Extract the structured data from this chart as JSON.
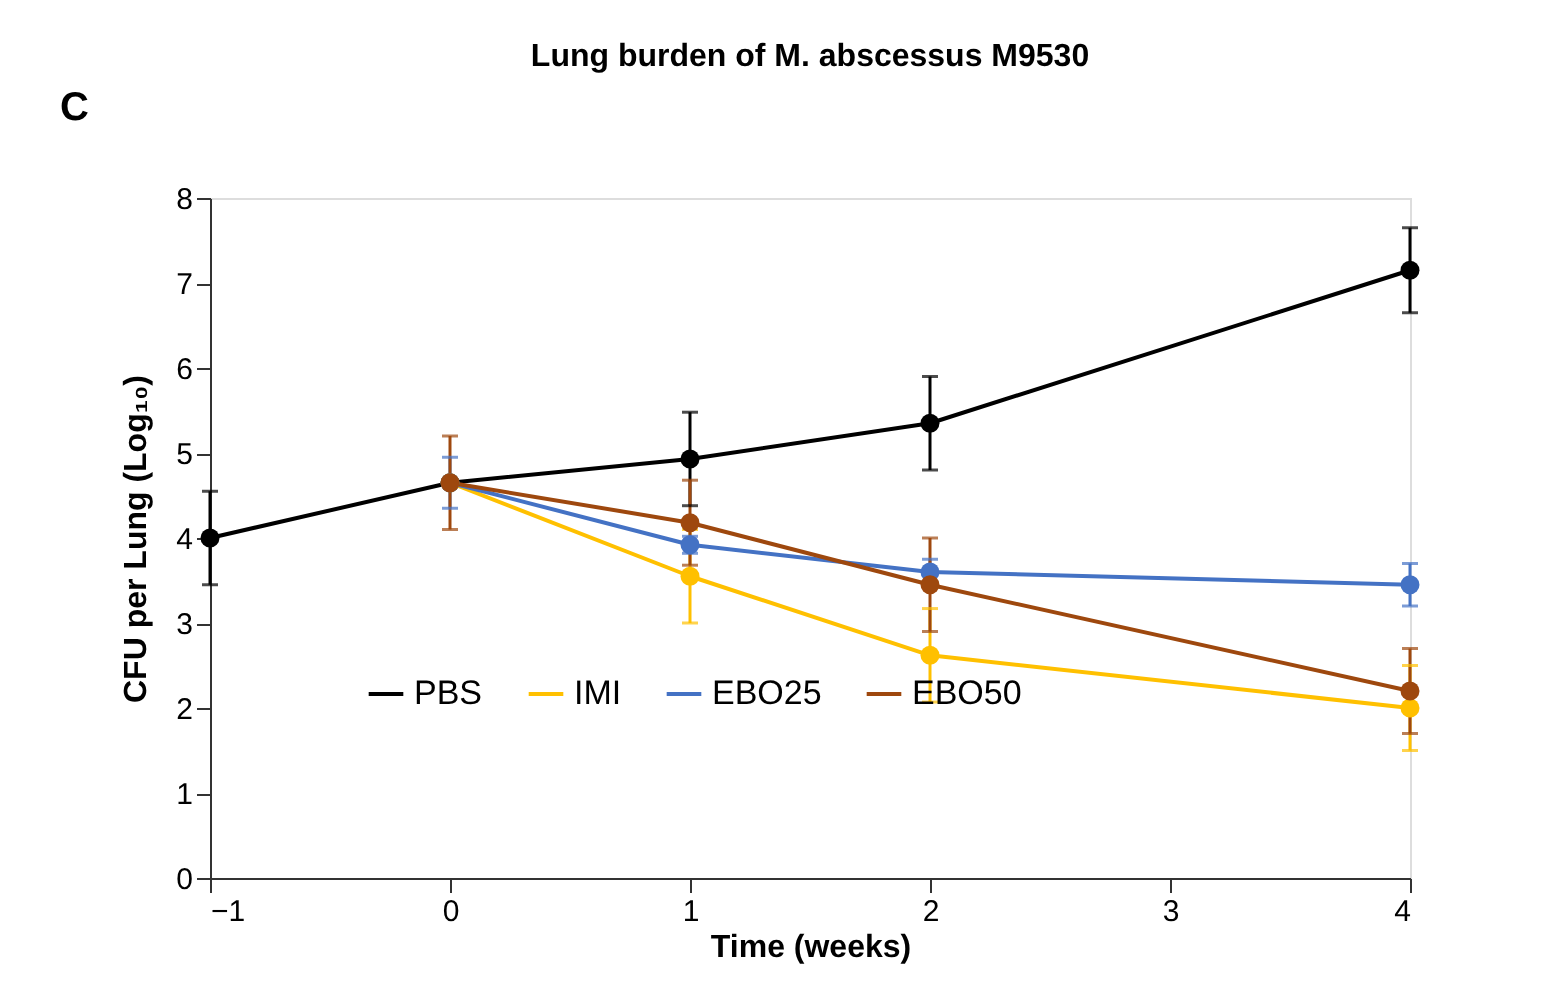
{
  "chart_data": {
    "type": "line",
    "title": "Lung burden of  M. abscessus M9530",
    "xlabel": "Time (weeks)",
    "ylabel": "CFU per Lung (Log₁₀)",
    "annotations": [
      "C"
    ],
    "xlim": [
      -1,
      4
    ],
    "xticks": [
      -1,
      0,
      1,
      2,
      3,
      4
    ],
    "ylim": [
      0,
      8
    ],
    "yticks": [
      0,
      1,
      2,
      3,
      4,
      5,
      6,
      7,
      8
    ],
    "grid": false,
    "legend": "bottom",
    "marker": "circle",
    "line_style": "solid",
    "series": [
      {
        "name": "PBS",
        "color": "#000000",
        "x": [
          -1,
          0,
          1,
          2,
          4
        ],
        "values": [
          4.0,
          4.65,
          4.93,
          5.35,
          7.15
        ],
        "errors": [
          0.55,
          null,
          0.55,
          0.55,
          0.5
        ]
      },
      {
        "name": "IMI",
        "color": "#ffc000",
        "x": [
          0,
          1,
          2,
          4
        ],
        "values": [
          4.65,
          3.55,
          2.62,
          2.0
        ],
        "errors": [
          null,
          0.55,
          0.55,
          0.5
        ]
      },
      {
        "name": "EBO25",
        "color": "#4472c4",
        "x": [
          0,
          1,
          2,
          4
        ],
        "values": [
          4.65,
          3.92,
          3.6,
          3.45
        ],
        "errors": [
          0.3,
          0.1,
          0.15,
          0.25
        ]
      },
      {
        "name": "EBO50",
        "color": "#9e480e",
        "x": [
          0,
          1,
          2,
          4
        ],
        "values": [
          4.65,
          4.18,
          3.45,
          2.2
        ],
        "errors": [
          0.55,
          0.5,
          0.55,
          0.5
        ]
      }
    ]
  }
}
